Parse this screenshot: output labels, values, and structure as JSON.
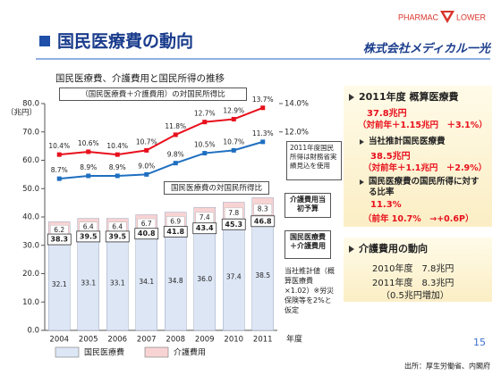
{
  "header": {
    "logo_left": "PHARMAC",
    "logo_right": "LOWER",
    "company": "株式会社メディカル一光",
    "title": "国民医療費の動向"
  },
  "chart_data": {
    "type": "bar",
    "title": "国民医療費、介護費用と国民所得の推移",
    "categories": [
      "2004",
      "2005",
      "2006",
      "2007",
      "2008",
      "2009",
      "2010",
      "2011"
    ],
    "series": [
      {
        "name": "国民医療費",
        "color": "#dde6f5",
        "values": [
          32.1,
          33.1,
          33.1,
          34.1,
          34.8,
          36.0,
          37.4,
          38.5
        ],
        "value_labels": [
          "32.1",
          "33.1",
          "33.1",
          "34.1",
          "34.8",
          "36.0",
          "37.4",
          "38.5"
        ]
      },
      {
        "name": "介護費用",
        "color": "#f8d3d3",
        "values": [
          6.2,
          6.4,
          6.4,
          6.7,
          6.9,
          7.4,
          7.8,
          8.3
        ]
      },
      {
        "name": "（国民医療費＋介護費用）の対国民所得比",
        "type": "line",
        "axis": "y2",
        "color": "#e8101c",
        "values": [
          10.4,
          10.6,
          10.4,
          10.7,
          11.8,
          12.7,
          12.9,
          13.7
        ],
        "value_labels": [
          "10.4%",
          "10.6%",
          "10.4%",
          "10.7%",
          "11.8%",
          "12.7%",
          "12.9%",
          "13.7%"
        ]
      },
      {
        "name": "国民医療費の対国民所得比",
        "type": "line",
        "axis": "y2",
        "color": "#1f6fc0",
        "values": [
          8.7,
          8.9,
          8.9,
          9.0,
          9.8,
          10.5,
          10.7,
          11.3
        ],
        "value_labels": [
          "8.7%",
          "8.9%",
          "8.9%",
          "9.0%",
          "9.8%",
          "10.5%",
          "10.7%",
          "11.3%"
        ]
      }
    ],
    "totals": [
      38.3,
      39.5,
      39.5,
      40.8,
      41.8,
      43.4,
      45.3,
      46.8
    ],
    "ylabel": "（兆円）",
    "xlabel": "年度",
    "ylim": [
      0,
      80
    ],
    "yticks": [
      {
        "value": 0,
        "label": "0.0"
      },
      {
        "value": 10,
        "label": "10.0"
      },
      {
        "value": 20,
        "label": "20.0"
      },
      {
        "value": 30,
        "label": "30.0"
      },
      {
        "value": 40,
        "label": "40.0"
      },
      {
        "value": 50,
        "label": "50.0"
      },
      {
        "value": 60,
        "label": "60.0"
      },
      {
        "value": 70,
        "label": "70.0"
      },
      {
        "value": 80,
        "label": "80.0"
      }
    ],
    "y2lim": [
      -2,
      14
    ],
    "y2ticks": [
      {
        "value": 12,
        "label": "12.0%"
      },
      {
        "value": 14,
        "label": "14.0%"
      }
    ],
    "annotations": [
      "2011年度国民所得は財務省実績見込を使用",
      "介護費用当初予算",
      "国民医療費＋介護費用",
      "当社推計値（概算医療費×1.02）※労災保険等を2%と仮定"
    ]
  },
  "sidebar": {
    "medical": {
      "heading": "2011年度 概算医療費",
      "amount": "37.8兆円",
      "change": "（対前年＋1.15兆円　＋3.1%）",
      "items": [
        {
          "heading": "当社推計国民医療費",
          "amount": "38.5兆円",
          "change": "（対前年＋1.1兆円　＋2.9%）"
        },
        {
          "heading": "国民医療費の国民所得に対する比率",
          "amount": "11.3%",
          "change": "（前年 10.7%　→+0.6P）"
        }
      ]
    },
    "care": {
      "heading": "介護費用の動向",
      "rows": [
        "2010年度　7.8兆円",
        "2011年度　8.3兆円",
        "（0.5兆円増加）"
      ]
    }
  },
  "footer": {
    "page": "15",
    "source": "出所：厚生労働省、内閣府"
  }
}
